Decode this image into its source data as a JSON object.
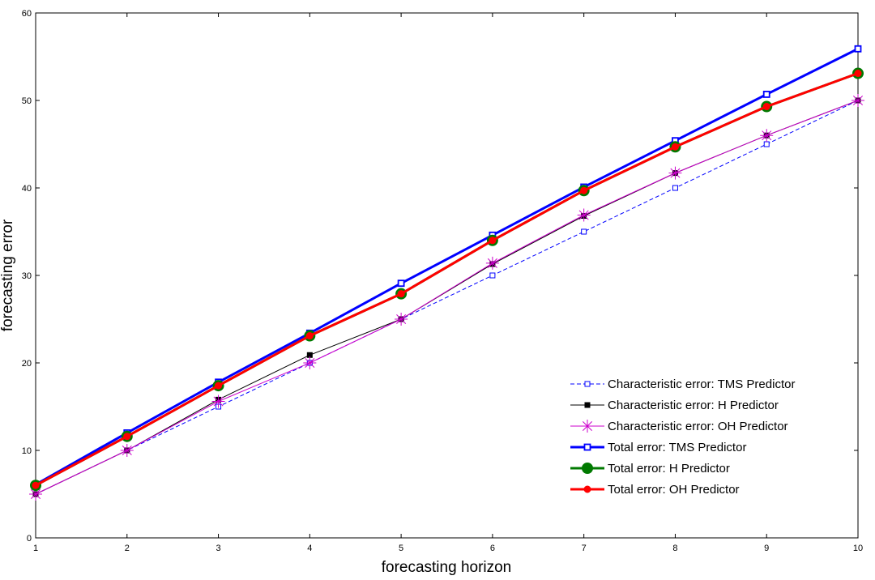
{
  "chart_data": {
    "type": "line",
    "title": "",
    "xlabel": "forecasting horizon",
    "ylabel": "forecasting error",
    "x": [
      1,
      2,
      3,
      4,
      5,
      6,
      7,
      8,
      9,
      10
    ],
    "xlim": [
      1,
      10
    ],
    "ylim": [
      0,
      60
    ],
    "xticks": [
      "1",
      "2",
      "3",
      "4",
      "5",
      "6",
      "7",
      "8",
      "9",
      "10"
    ],
    "yticks": [
      "0",
      "10",
      "20",
      "30",
      "40",
      "50",
      "60"
    ],
    "grid": false,
    "legend_position": "bottom-right",
    "series": [
      {
        "name": "Characteristic error: TMS Predictor",
        "values": [
          5,
          10,
          15,
          20,
          25,
          30,
          35,
          40,
          45,
          50
        ],
        "color": "#0000ff",
        "style": "dashed",
        "marker": "open-square",
        "weight": "thin"
      },
      {
        "name": "Characteristic error: H Predictor",
        "values": [
          5,
          10,
          15.8,
          20.9,
          25,
          31.3,
          36.8,
          41.7,
          46,
          50
        ],
        "color": "#000000",
        "style": "solid",
        "marker": "filled-square",
        "weight": "thin"
      },
      {
        "name": "Characteristic error: OH Predictor",
        "values": [
          5,
          10,
          15.6,
          20,
          25,
          31.4,
          36.9,
          41.7,
          46,
          50
        ],
        "color": "#cc00cc",
        "style": "solid",
        "marker": "star",
        "weight": "thin"
      },
      {
        "name": "Total error: TMS Predictor",
        "values": [
          6.1,
          12,
          17.8,
          23.4,
          29.1,
          34.6,
          40.1,
          45.4,
          50.7,
          55.9
        ],
        "color": "#0000ff",
        "style": "solid",
        "marker": "open-square",
        "weight": "thick"
      },
      {
        "name": "Total error: H Predictor",
        "values": [
          6,
          11.6,
          17.4,
          23.1,
          27.9,
          34,
          39.7,
          44.7,
          49.3,
          53.1
        ],
        "color": "#007a00",
        "style": "solid",
        "marker": "big-circle",
        "weight": "thick"
      },
      {
        "name": "Total error: OH Predictor",
        "values": [
          6,
          11.6,
          17.4,
          23.1,
          27.9,
          34,
          39.7,
          44.7,
          49.3,
          53.1
        ],
        "color": "#ff0000",
        "style": "solid",
        "marker": "circle",
        "weight": "thick"
      }
    ]
  }
}
